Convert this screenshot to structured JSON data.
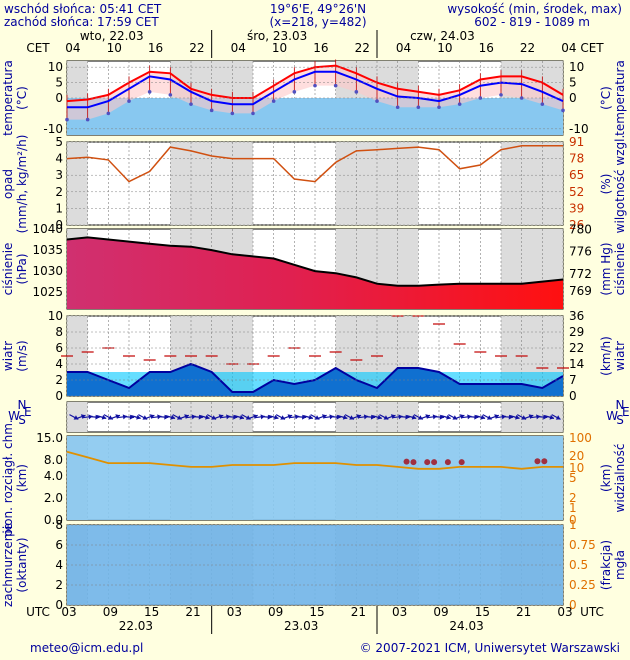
{
  "header": {
    "sunrise": "wschód słońca: 05:41 CET",
    "sunset": "zachód słońca: 17:59 CET",
    "coords": "19°6'E, 49°26'N",
    "grid": "(x=218, y=482)",
    "height_title": "wysokość (min, środek, max)",
    "height_values": "602 - 819 - 1089 m"
  },
  "top_axis": {
    "tz": "CET",
    "hours": [
      "04",
      "10",
      "16",
      "22",
      "04",
      "10",
      "16",
      "22",
      "04",
      "10",
      "16",
      "22",
      "04"
    ],
    "days": [
      "wto, 22.03",
      "śro, 23.03",
      "czw, 24.03"
    ]
  },
  "bottom_axis": {
    "tz": "UTC",
    "hours": [
      "03",
      "09",
      "15",
      "21",
      "03",
      "09",
      "15",
      "21",
      "03",
      "09",
      "15",
      "21",
      "03"
    ],
    "days": [
      "22.03",
      "23.03",
      "24.03"
    ]
  },
  "footer": {
    "email": "meteo@icm.edu.pl",
    "copyright": "© 2007-2021 ICM, Uniwersytet Warszawski"
  },
  "panel_labels": {
    "temp_left": [
      "temperatura",
      "(°C)"
    ],
    "temp_right": [
      "(°C)",
      "temperatura"
    ],
    "precip_left": [
      "opad",
      "(mm/h, kg/m²/h)"
    ],
    "precip_right": [
      "(%)",
      "wilgotność wzgl."
    ],
    "press_left": [
      "ciśnienie",
      "(hPa)"
    ],
    "press_right": [
      "(mm Hg)",
      "ciśnienie"
    ],
    "wind_left": [
      "wiatr",
      "(m/s)"
    ],
    "wind_right": [
      "(km/h)",
      "wiatr"
    ],
    "dir_left": "W",
    "dir_right": "W",
    "dir_sub": [
      "N",
      "S",
      "E"
    ],
    "vis_left": [
      "pion. rozciągł. chm.",
      "(km)"
    ],
    "vis_right": [
      "(km)",
      "widzialność"
    ],
    "cloud_left": [
      "zachmurzenie",
      "(oktanty)"
    ],
    "cloud_right": [
      "(frakcja)",
      "mgła"
    ]
  },
  "chart_data": [
    {
      "type": "line",
      "panel": "temperature",
      "x_hours": [
        0,
        3,
        6,
        9,
        12,
        15,
        18,
        21,
        24,
        27,
        30,
        33,
        36,
        39,
        42,
        45,
        48,
        51,
        54,
        57,
        60,
        63,
        66,
        69,
        72
      ],
      "series": [
        {
          "values": [
            -1,
            -0.5,
            1,
            5,
            8.5,
            8,
            3,
            1,
            0,
            0,
            4,
            8,
            10,
            10.5,
            8,
            5,
            3,
            2,
            1,
            2.5,
            6,
            7,
            7,
            5,
            1
          ]
        },
        {
          "values": [
            -3,
            -3,
            -1,
            3,
            7,
            6,
            2,
            -1,
            -2,
            -2,
            2,
            6,
            8.5,
            8.5,
            6,
            3,
            0.5,
            0,
            -1,
            1,
            4,
            5,
            4.5,
            2,
            -1
          ]
        },
        {
          "values": [
            -7,
            -7,
            -5,
            -1,
            2,
            1,
            -2,
            -4,
            -5,
            -5,
            -1,
            2,
            4,
            4,
            2,
            -1,
            -3,
            -3,
            -3,
            -2,
            0,
            1,
            0,
            -2,
            -4
          ]
        }
      ],
      "ylim": [
        -12,
        12
      ],
      "yticks": [
        -10,
        0,
        5,
        10
      ]
    },
    {
      "type": "line",
      "panel": "precipitation_humidity",
      "x_hours": [
        0,
        3,
        6,
        9,
        12,
        15,
        18,
        21,
        24,
        27,
        30,
        33,
        36,
        39,
        42,
        45,
        48,
        51,
        54,
        57,
        60,
        63,
        66,
        69,
        72
      ],
      "series": [
        {
          "values": [
            78,
            79,
            77,
            60,
            68,
            87,
            84,
            80,
            78,
            78,
            78,
            62,
            60,
            75,
            84,
            85,
            86,
            87,
            85,
            70,
            73,
            85,
            88,
            88,
            88
          ]
        }
      ],
      "ylim_left": [
        0,
        5
      ],
      "yticks_left": [
        0,
        1,
        2,
        3,
        4,
        5
      ],
      "yticks_right": [
        26,
        39,
        52,
        65,
        78,
        91
      ]
    },
    {
      "type": "area",
      "panel": "pressure",
      "x_hours": [
        0,
        3,
        6,
        9,
        12,
        15,
        18,
        21,
        24,
        27,
        30,
        33,
        36,
        39,
        42,
        45,
        48,
        51,
        54,
        57,
        60,
        63,
        66,
        69,
        72
      ],
      "series": [
        {
          "values": [
            1037.5,
            1038,
            1037.5,
            1037,
            1036.5,
            1036,
            1035.8,
            1035,
            1034,
            1033.5,
            1033,
            1031.5,
            1030,
            1029.5,
            1028.5,
            1027,
            1026.5,
            1026.5,
            1026.8,
            1027,
            1027,
            1027,
            1027,
            1027.5,
            1028
          ]
        }
      ],
      "ylim": [
        1021,
        1040
      ],
      "yticks_left": [
        1025,
        1030,
        1035,
        1040
      ],
      "yticks_right": [
        769,
        772,
        776,
        780
      ]
    },
    {
      "type": "area",
      "panel": "wind",
      "x_hours": [
        0,
        3,
        6,
        9,
        12,
        15,
        18,
        21,
        24,
        27,
        30,
        33,
        36,
        39,
        42,
        45,
        48,
        51,
        54,
        57,
        60,
        63,
        66,
        69,
        72
      ],
      "series": [
        {
          "values": [
            3,
            3,
            2,
            1,
            3,
            3,
            4,
            3,
            0.5,
            0.5,
            2,
            1.5,
            2,
            3.5,
            2,
            1,
            3.5,
            3.5,
            3,
            1.5,
            1.5,
            1.5,
            1.5,
            1,
            2.5
          ]
        },
        {
          "values": [
            5,
            5.5,
            6,
            5,
            4.5,
            5,
            5,
            5,
            4,
            4,
            5,
            6,
            5,
            5.5,
            4.5,
            5,
            10,
            10,
            9,
            6.5,
            5.5,
            5,
            5,
            3.5,
            3.5
          ]
        }
      ],
      "ylim": [
        0,
        10
      ],
      "yticks_left": [
        0,
        2,
        4,
        6,
        8,
        10
      ],
      "yticks_right": [
        0,
        7,
        14,
        22,
        29,
        36
      ]
    },
    {
      "type": "line",
      "panel": "cloud_extent_visibility",
      "x_hours": [
        0,
        3,
        6,
        9,
        12,
        15,
        18,
        21,
        24,
        27,
        30,
        33,
        36,
        39,
        42,
        45,
        48,
        51,
        54,
        57,
        60,
        63,
        66,
        69,
        72
      ],
      "series": [
        {
          "values": [
            17,
            14,
            11,
            11,
            11,
            10,
            9,
            9,
            10,
            10,
            10,
            11,
            11,
            11,
            10,
            10,
            9,
            8,
            8,
            9,
            9,
            9,
            8,
            9,
            9
          ]
        }
      ],
      "yticks_left": [
        0,
        2,
        4,
        8,
        15
      ],
      "yticks_right": [
        0,
        1,
        2,
        5,
        10,
        20,
        100
      ]
    },
    {
      "type": "area",
      "panel": "cloud_cover_fog",
      "x_hours": [
        0,
        72
      ],
      "series": [
        {
          "values": [
            8,
            8
          ]
        }
      ],
      "ylim": [
        0,
        8
      ],
      "yticks_left": [
        0,
        2,
        4,
        6,
        8
      ],
      "yticks_right": [
        0,
        0.25,
        0.5,
        0.75,
        1
      ]
    }
  ]
}
